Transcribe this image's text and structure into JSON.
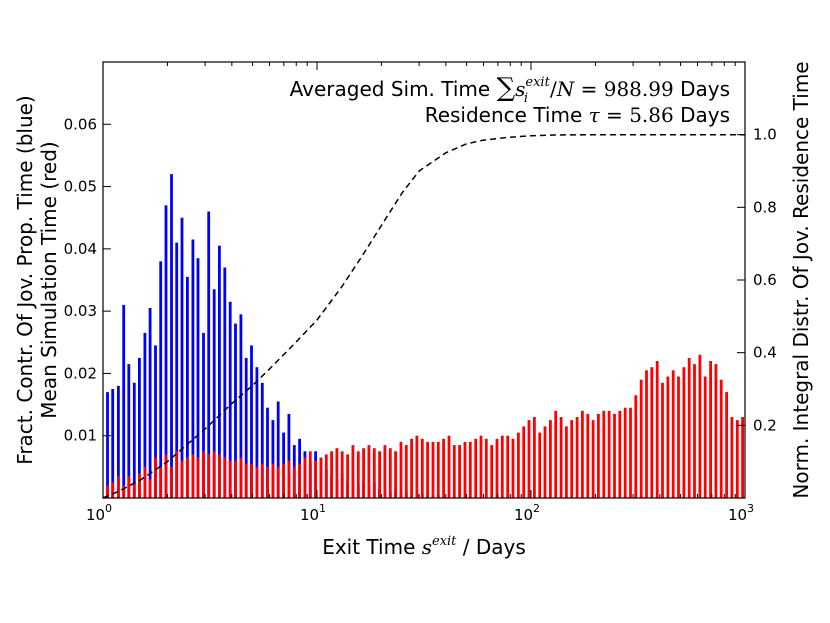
{
  "chart_data": {
    "type": "bar",
    "xscale": "log",
    "x_range": [
      1,
      1000
    ],
    "x_ticks": [
      {
        "value": 1,
        "base": "10",
        "exp": "0"
      },
      {
        "value": 10,
        "base": "10",
        "exp": "1"
      },
      {
        "value": 100,
        "base": "10",
        "exp": "2"
      },
      {
        "value": 1000,
        "base": "10",
        "exp": "3"
      }
    ],
    "xlabel": {
      "prefix": "Exit Time ",
      "sym": "s",
      "sup": "exit",
      "suffix": " / Days"
    },
    "ylabel_lines": [
      "Fract. Contr. Of Jov. Prop. Time (blue)",
      "Mean Simulation Time (red)"
    ],
    "ylim": [
      0,
      0.07
    ],
    "y_ticks": [
      "0.01",
      "0.02",
      "0.03",
      "0.04",
      "0.05",
      "0.06"
    ],
    "y2label": "Norm. Integral Distr. Of Jov. Residence Time",
    "y2lim": [
      0,
      1.2
    ],
    "y2_ticks": [
      "0.2",
      "0.4",
      "0.6",
      "0.8",
      "1.0"
    ],
    "grid": false,
    "annotations": {
      "line1_prefix": "Averaged Sim. Time ",
      "line1_sum": "∑",
      "line1_sym": "s",
      "line1_sub": "i",
      "line1_sup": "exit",
      "line1_over": "/",
      "line1_N": "N",
      "line1_eq": " = ",
      "line1_value": "988.99",
      "line1_unit": " Days",
      "line2_prefix": "Residence Time ",
      "line2_sym": "τ",
      "line2_eq": " = ",
      "line2_value": "5.86",
      "line2_unit": " Days"
    },
    "series": [
      {
        "color": "#0000ff",
        "axis": "left",
        "x": [
          1.05,
          1.11,
          1.18,
          1.25,
          1.32,
          1.4,
          1.48,
          1.57,
          1.66,
          1.76,
          1.86,
          1.97,
          2.09,
          2.21,
          2.34,
          2.48,
          2.63,
          2.78,
          2.95,
          3.12,
          3.31,
          3.5,
          3.71,
          3.93,
          4.16,
          4.41,
          4.67,
          4.94,
          5.24,
          5.55,
          5.87,
          6.22,
          6.59,
          6.98,
          7.39,
          7.83,
          8.29,
          8.78,
          9.3,
          9.85,
          10.43,
          11.05,
          11.7,
          12.39,
          13.12,
          13.9,
          14.72,
          15.59,
          16.51,
          17.48,
          18.52,
          19.61,
          20.77,
          22.0,
          23.3,
          24.68,
          26.13,
          27.68,
          29.31,
          31.05,
          32.88,
          34.82,
          36.88,
          39.06,
          41.37,
          43.81,
          46.4,
          49.14,
          52.05
        ],
        "values": [
          0.017,
          0.0175,
          0.018,
          0.031,
          0.0215,
          0.0185,
          0.0225,
          0.0265,
          0.0305,
          0.0245,
          0.038,
          0.047,
          0.052,
          0.041,
          0.045,
          0.0355,
          0.0415,
          0.0385,
          0.0265,
          0.046,
          0.0335,
          0.0405,
          0.037,
          0.0315,
          0.028,
          0.0295,
          0.0225,
          0.0245,
          0.021,
          0.0185,
          0.0145,
          0.0125,
          0.0155,
          0.0105,
          0.0135,
          0.0085,
          0.0095,
          0.0075,
          0.0055,
          0.0075,
          0.0065,
          0.0045,
          0.0035,
          0.003,
          0.004,
          0.0025,
          0.003,
          0.002,
          0.0025,
          0.002,
          0.0025,
          0.0015,
          0.0015,
          0.001,
          0.0015,
          0.001,
          0.001,
          0.0005,
          0.001,
          0.0005,
          0.0005,
          0.0005,
          0.0005,
          0.0002,
          0.0002,
          0.0002,
          0.0002,
          0.0002,
          0.0002
        ]
      },
      {
        "color": "#ff0000",
        "axis": "left",
        "x": [
          1.05,
          1.11,
          1.18,
          1.25,
          1.32,
          1.4,
          1.48,
          1.57,
          1.66,
          1.76,
          1.86,
          1.97,
          2.09,
          2.21,
          2.34,
          2.48,
          2.63,
          2.78,
          2.95,
          3.12,
          3.31,
          3.5,
          3.71,
          3.93,
          4.16,
          4.41,
          4.67,
          4.94,
          5.24,
          5.55,
          5.87,
          6.22,
          6.59,
          6.98,
          7.39,
          7.83,
          8.29,
          8.78,
          9.3,
          9.85,
          10.43,
          11.05,
          11.7,
          12.39,
          13.12,
          13.9,
          14.72,
          15.59,
          16.51,
          17.48,
          18.52,
          19.61,
          20.77,
          22.0,
          23.3,
          24.68,
          26.13,
          27.68,
          29.31,
          31.05,
          32.88,
          34.82,
          36.88,
          39.06,
          41.37,
          43.81,
          46.4,
          49.14,
          52.05,
          55.13,
          58.39,
          61.84,
          65.5,
          69.37,
          73.47,
          77.81,
          82.42,
          87.29,
          92.45,
          97.92,
          103.7,
          109.8,
          116.3,
          123.2,
          130.5,
          138.2,
          146.4,
          155.0,
          164.2,
          173.9,
          184.2,
          195.1,
          206.6,
          218.8,
          231.8,
          245.5,
          260.0,
          275.4,
          291.6,
          308.9,
          327.2,
          346.5,
          367.0,
          388.7,
          411.7,
          436.0,
          461.8,
          489.1,
          518.0,
          548.6,
          581.1,
          615.4,
          651.8,
          690.3,
          731.1,
          774.4,
          820.2,
          868.7,
          920.0,
          974.4
        ],
        "values": [
          0.002,
          0.0025,
          0.0035,
          0.002,
          0.0035,
          0.0025,
          0.004,
          0.005,
          0.003,
          0.0065,
          0.005,
          0.007,
          0.005,
          0.0075,
          0.006,
          0.0065,
          0.007,
          0.0065,
          0.0075,
          0.007,
          0.0075,
          0.007,
          0.0065,
          0.006,
          0.006,
          0.0065,
          0.0055,
          0.0055,
          0.005,
          0.0055,
          0.005,
          0.0055,
          0.005,
          0.0055,
          0.006,
          0.005,
          0.0055,
          0.0065,
          0.0075,
          0.006,
          0.0065,
          0.007,
          0.0075,
          0.008,
          0.0075,
          0.007,
          0.0085,
          0.0075,
          0.008,
          0.0085,
          0.008,
          0.0075,
          0.0085,
          0.008,
          0.0075,
          0.009,
          0.0085,
          0.0095,
          0.01,
          0.0095,
          0.009,
          0.009,
          0.009,
          0.0095,
          0.01,
          0.0085,
          0.0085,
          0.009,
          0.009,
          0.0095,
          0.01,
          0.0095,
          0.0085,
          0.0095,
          0.01,
          0.01,
          0.0095,
          0.0105,
          0.0115,
          0.0125,
          0.013,
          0.0105,
          0.0115,
          0.0125,
          0.014,
          0.013,
          0.0115,
          0.0125,
          0.013,
          0.014,
          0.0135,
          0.0125,
          0.0135,
          0.014,
          0.014,
          0.0135,
          0.014,
          0.0145,
          0.0145,
          0.0165,
          0.019,
          0.0205,
          0.021,
          0.022,
          0.0185,
          0.0195,
          0.0205,
          0.0195,
          0.021,
          0.0225,
          0.0215,
          0.023,
          0.0195,
          0.022,
          0.0215,
          0.019,
          0.017,
          0.013,
          0.0125,
          0.013
        ]
      },
      {
        "color": "#000000",
        "style": "dashed",
        "axis": "right",
        "x": [
          1,
          1.2,
          1.5,
          2,
          2.5,
          3,
          4,
          5,
          6,
          8,
          10,
          13,
          16,
          20,
          25,
          30,
          40,
          50,
          60,
          80,
          100,
          130,
          200,
          300,
          500,
          1000
        ],
        "values": [
          0.0,
          0.02,
          0.05,
          0.1,
          0.15,
          0.19,
          0.26,
          0.31,
          0.355,
          0.43,
          0.49,
          0.58,
          0.66,
          0.75,
          0.84,
          0.9,
          0.95,
          0.975,
          0.985,
          0.993,
          0.997,
          0.999,
          1.0,
          1.0,
          1.0,
          1.0
        ]
      }
    ]
  }
}
